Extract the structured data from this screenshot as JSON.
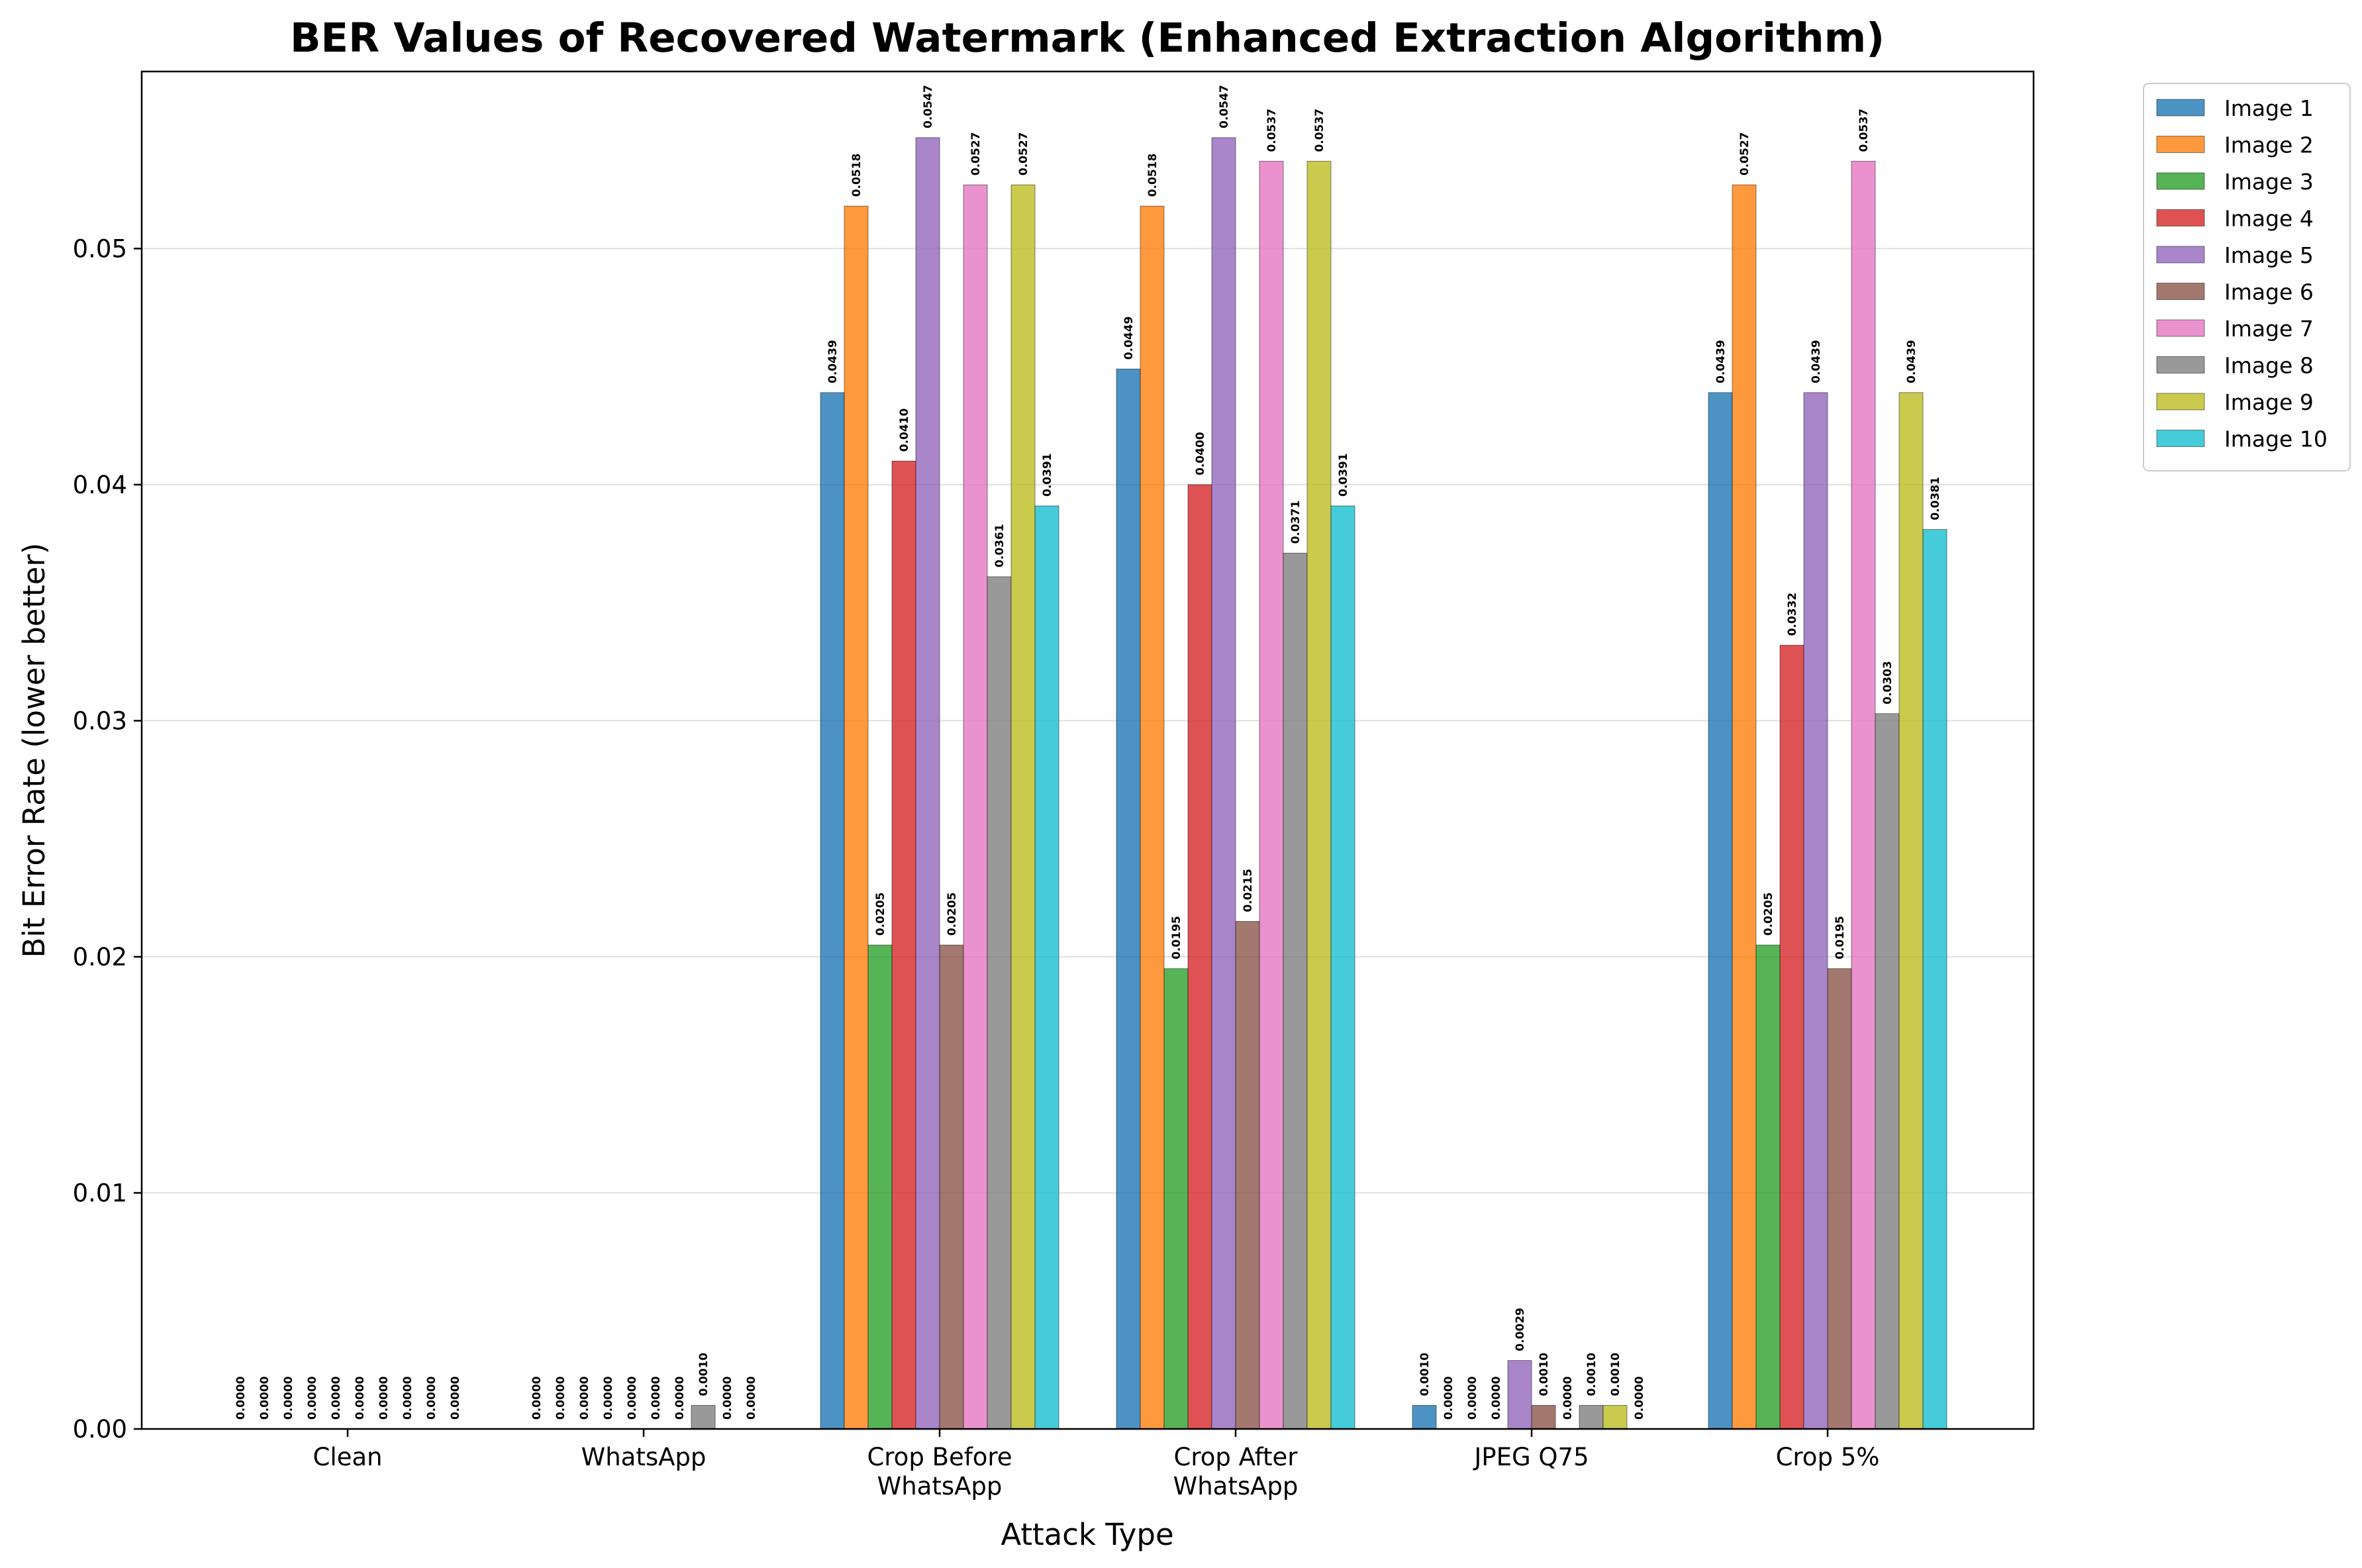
{
  "chart_data": {
    "type": "bar",
    "title": "BER Values of Recovered Watermark (Enhanced Extraction Algorithm)",
    "xlabel": "Attack Type",
    "ylabel": "Bit Error Rate (lower better)",
    "ylim": [
      0,
      0.0575
    ],
    "yticks": [
      "0.00",
      "0.01",
      "0.02",
      "0.03",
      "0.04",
      "0.05"
    ],
    "grid": "horizontal",
    "legend_position": "outside-right",
    "categories": [
      [
        "Clean"
      ],
      [
        "WhatsApp"
      ],
      [
        "Crop Before",
        "WhatsApp"
      ],
      [
        "Crop After",
        "WhatsApp"
      ],
      [
        "JPEG Q75"
      ],
      [
        "Crop 5%"
      ]
    ],
    "series": [
      {
        "name": "Image 1",
        "color": "#1f77b4",
        "values": [
          0.0,
          0.0,
          0.0439,
          0.0449,
          0.001,
          0.0439
        ],
        "labels": [
          "0.0000",
          "0.0000",
          "0.0439",
          "0.0449",
          "0.0010",
          "0.0439"
        ]
      },
      {
        "name": "Image 2",
        "color": "#ff7f0e",
        "values": [
          0.0,
          0.0,
          0.0518,
          0.0518,
          0.0,
          0.0527
        ],
        "labels": [
          "0.0000",
          "0.0000",
          "0.0518",
          "0.0518",
          "0.0000",
          "0.0527"
        ]
      },
      {
        "name": "Image 3",
        "color": "#2ca02c",
        "values": [
          0.0,
          0.0,
          0.0205,
          0.0195,
          0.0,
          0.0205
        ],
        "labels": [
          "0.0000",
          "0.0000",
          "0.0205",
          "0.0195",
          "0.0000",
          "0.0205"
        ]
      },
      {
        "name": "Image 4",
        "color": "#d62728",
        "values": [
          0.0,
          0.0,
          0.041,
          0.04,
          0.0,
          0.0332
        ],
        "labels": [
          "0.0000",
          "0.0000",
          "0.0410",
          "0.0400",
          "0.0000",
          "0.0332"
        ]
      },
      {
        "name": "Image 5",
        "color": "#9467bd",
        "values": [
          0.0,
          0.0,
          0.0547,
          0.0547,
          0.0029,
          0.0439
        ],
        "labels": [
          "0.0000",
          "0.0000",
          "0.0547",
          "0.0547",
          "0.0029",
          "0.0439"
        ]
      },
      {
        "name": "Image 6",
        "color": "#8c564b",
        "values": [
          0.0,
          0.0,
          0.0205,
          0.0215,
          0.001,
          0.0195
        ],
        "labels": [
          "0.0000",
          "0.0000",
          "0.0205",
          "0.0215",
          "0.0010",
          "0.0195"
        ]
      },
      {
        "name": "Image 7",
        "color": "#e377c2",
        "values": [
          0.0,
          0.0,
          0.0527,
          0.0537,
          0.0,
          0.0537
        ],
        "labels": [
          "0.0000",
          "0.0000",
          "0.0527",
          "0.0537",
          "0.0000",
          "0.0537"
        ]
      },
      {
        "name": "Image 8",
        "color": "#7f7f7f",
        "values": [
          0.0,
          0.001,
          0.0361,
          0.0371,
          0.001,
          0.0303
        ],
        "labels": [
          "0.0000",
          "0.0010",
          "0.0361",
          "0.0371",
          "0.0010",
          "0.0303"
        ]
      },
      {
        "name": "Image 9",
        "color": "#bcbd22",
        "values": [
          0.0,
          0.0,
          0.0527,
          0.0537,
          0.001,
          0.0439
        ],
        "labels": [
          "0.0000",
          "0.0000",
          "0.0527",
          "0.0537",
          "0.0010",
          "0.0439"
        ]
      },
      {
        "name": "Image 10",
        "color": "#17becf",
        "values": [
          0.0,
          0.0,
          0.0391,
          0.0391,
          0.0,
          0.0381
        ],
        "labels": [
          "0.0000",
          "0.0000",
          "0.0391",
          "0.0391",
          "0.0000",
          "0.0381"
        ]
      }
    ]
  }
}
